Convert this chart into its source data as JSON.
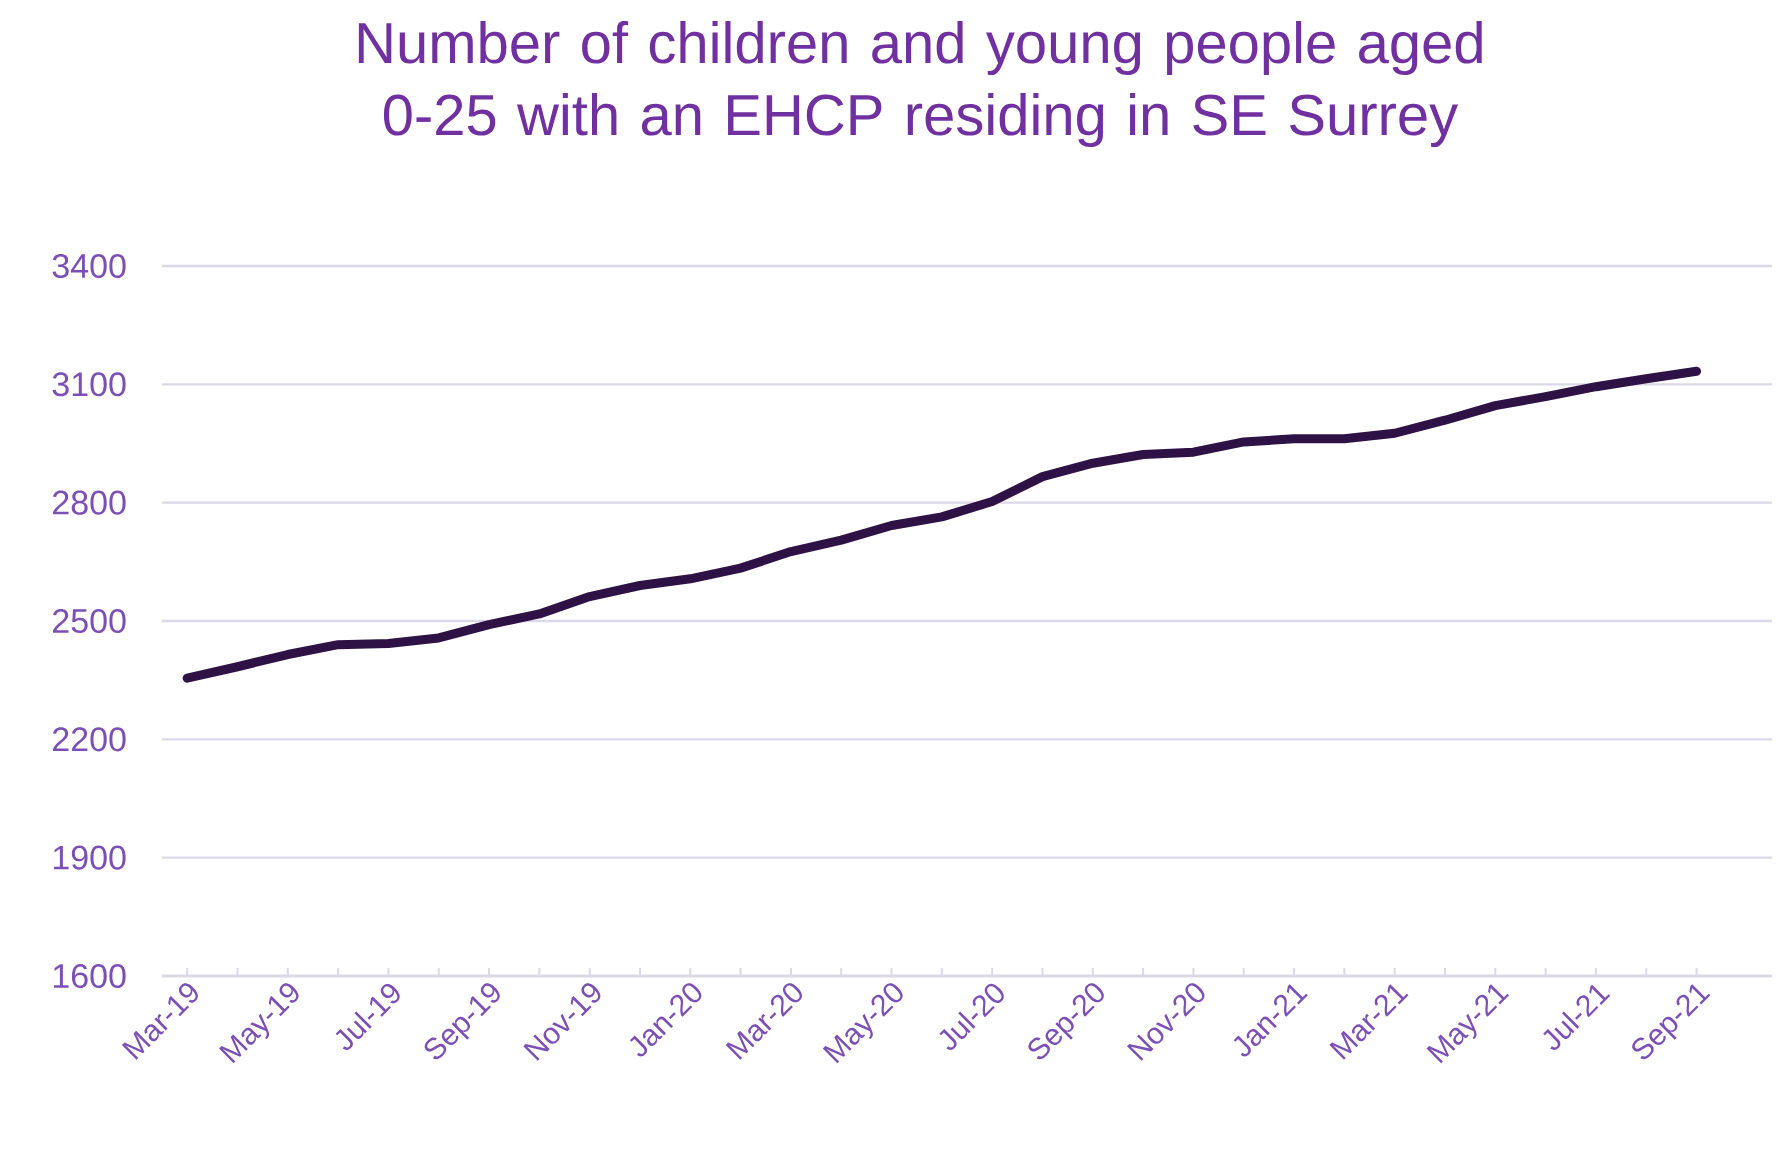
{
  "chart_data": {
    "type": "line",
    "title": "Number of children and young people aged 0-25 with an EHCP residing in SE Surrey",
    "categories": [
      "Mar-19",
      null,
      "May-19",
      null,
      "Jul-19",
      null,
      "Sep-19",
      null,
      "Nov-19",
      null,
      "Jan-20",
      null,
      "Mar-20",
      null,
      "May-20",
      null,
      "Jul-20",
      null,
      "Sep-20",
      null,
      "Nov-20",
      null,
      "Jan-21",
      null,
      "Mar-21",
      null,
      "May-21",
      null,
      "Jul-21",
      null,
      "Sep-21"
    ],
    "series": [
      {
        "color": "#2e1245",
        "values": [
          2355,
          2384,
          2415,
          2440,
          2443,
          2457,
          2491,
          2518,
          2562,
          2590,
          2607,
          2634,
          2676,
          2705,
          2742,
          2764,
          2803,
          2866,
          2900,
          2922,
          2928,
          2954,
          2962,
          2962,
          2976,
          3009,
          3046,
          3069,
          3094,
          3114,
          3133
        ]
      }
    ],
    "ylim": [
      1600,
      3400
    ],
    "yticks": [
      1600,
      1900,
      2200,
      2500,
      2800,
      3100,
      3400
    ],
    "grid": "y",
    "marker": "none",
    "line_style": "solid"
  }
}
